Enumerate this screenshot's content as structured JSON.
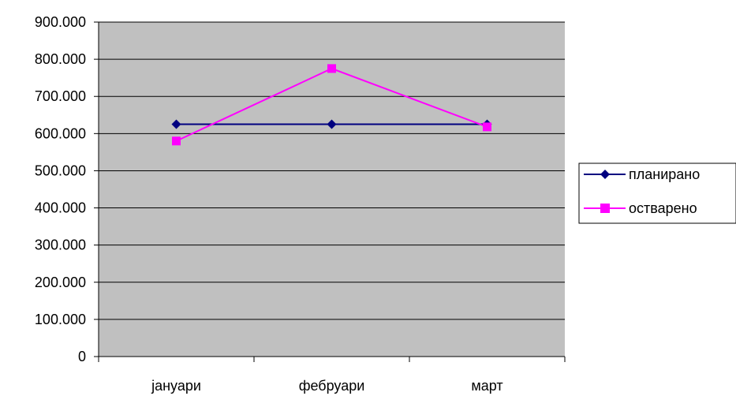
{
  "chart_data": {
    "type": "line",
    "categories": [
      "јануари",
      "фебруари",
      "март"
    ],
    "series": [
      {
        "name": "планирано",
        "values": [
          625000,
          625000,
          625000
        ],
        "color": "#000080",
        "marker": "diamond"
      },
      {
        "name": "остварено",
        "values": [
          580000,
          775000,
          618000
        ],
        "color": "#FF00FF",
        "marker": "square"
      }
    ],
    "y_ticks": [
      "0",
      "100.000",
      "200.000",
      "300.000",
      "400.000",
      "500.000",
      "600.000",
      "700.000",
      "800.000",
      "900.000"
    ],
    "ylim": [
      0,
      900000
    ],
    "grid": true,
    "plot_background": "#C0C0C0",
    "legend_position": "right"
  }
}
